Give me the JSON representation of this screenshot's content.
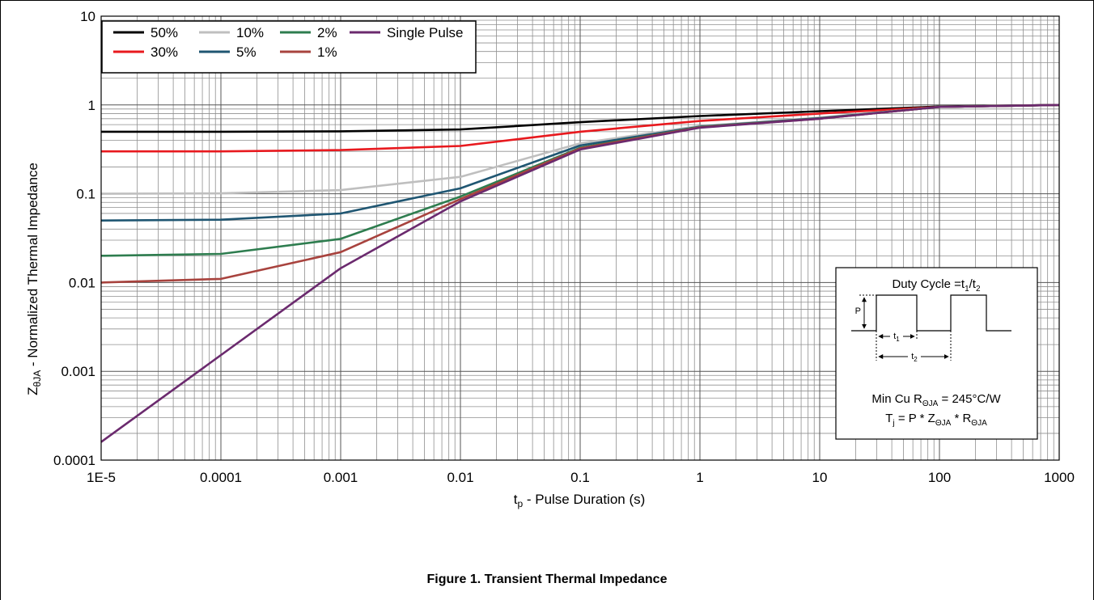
{
  "chart_data": {
    "type": "line",
    "title": "",
    "xlabel": {
      "main": "t",
      "sub": "p",
      "rest": " - Pulse Duration (s)"
    },
    "ylabel": {
      "main": "Z",
      "sub": "θJA",
      "rest": " - Normalized Thermal Impedance"
    },
    "x_scale": "log",
    "y_scale": "log",
    "xlim": [
      1e-05,
      1000
    ],
    "ylim": [
      0.0001,
      10
    ],
    "grid": true,
    "legend_position": "top-left",
    "x_ticks": [
      {
        "value": 1e-05,
        "label": "1E-5"
      },
      {
        "value": 0.0001,
        "label": "0.0001"
      },
      {
        "value": 0.001,
        "label": "0.001"
      },
      {
        "value": 0.01,
        "label": "0.01"
      },
      {
        "value": 0.1,
        "label": "0.1"
      },
      {
        "value": 1,
        "label": "1"
      },
      {
        "value": 10,
        "label": "10"
      },
      {
        "value": 100,
        "label": "100"
      },
      {
        "value": 1000,
        "label": "1000"
      }
    ],
    "y_ticks": [
      {
        "value": 0.0001,
        "label": "0.0001"
      },
      {
        "value": 0.001,
        "label": "0.001"
      },
      {
        "value": 0.01,
        "label": "0.01"
      },
      {
        "value": 0.1,
        "label": "0.1"
      },
      {
        "value": 1,
        "label": "1"
      },
      {
        "value": 10,
        "label": "10"
      }
    ],
    "series": [
      {
        "name": "50%",
        "color": "#000000",
        "x": [
          1e-05,
          0.0001,
          0.001,
          0.01,
          0.1,
          1,
          10,
          100,
          1000
        ],
        "y": [
          0.5,
          0.5,
          0.505,
          0.53,
          0.64,
          0.75,
          0.85,
          0.96,
          1.0
        ]
      },
      {
        "name": "30%",
        "color": "#e8191e",
        "x": [
          1e-05,
          0.0001,
          0.001,
          0.01,
          0.1,
          1,
          10,
          100,
          1000
        ],
        "y": [
          0.3,
          0.3,
          0.31,
          0.345,
          0.5,
          0.66,
          0.8,
          0.95,
          1.0
        ]
      },
      {
        "name": "10%",
        "color": "#bfbfbf",
        "x": [
          1e-05,
          0.0001,
          0.001,
          0.01,
          0.1,
          1,
          10,
          100,
          1000
        ],
        "y": [
          0.1,
          0.101,
          0.11,
          0.155,
          0.37,
          0.58,
          0.72,
          0.95,
          1.0
        ]
      },
      {
        "name": "5%",
        "color": "#1f5672",
        "x": [
          1e-05,
          0.0001,
          0.001,
          0.01,
          0.1,
          1,
          10,
          100,
          1000
        ],
        "y": [
          0.05,
          0.051,
          0.06,
          0.115,
          0.35,
          0.57,
          0.71,
          0.95,
          1.0
        ]
      },
      {
        "name": "2%",
        "color": "#2e7d4f",
        "x": [
          1e-05,
          0.0001,
          0.001,
          0.01,
          0.1,
          1,
          10,
          100,
          1000
        ],
        "y": [
          0.02,
          0.021,
          0.031,
          0.093,
          0.33,
          0.565,
          0.705,
          0.95,
          1.0
        ]
      },
      {
        "name": "1%",
        "color": "#a8433e",
        "x": [
          1e-05,
          0.0001,
          0.001,
          0.01,
          0.1,
          1,
          10,
          100,
          1000
        ],
        "y": [
          0.01,
          0.011,
          0.022,
          0.087,
          0.325,
          0.56,
          0.7,
          0.95,
          1.0
        ]
      },
      {
        "name": "Single Pulse",
        "color": "#6b2a6e",
        "x": [
          1e-05,
          0.001,
          0.01,
          0.1,
          1,
          10,
          100,
          1000
        ],
        "y": [
          0.00016,
          0.0145,
          0.082,
          0.315,
          0.555,
          0.7,
          0.95,
          1.0
        ]
      }
    ],
    "inset": {
      "title_main": "Duty Cycle =t",
      "title_sub1": "1",
      "title_slash": "/t",
      "title_sub2": "2",
      "p_label": "P",
      "t1_main": "t",
      "t1_sub": "1",
      "t2_main": "t",
      "t2_sub": "2",
      "rja_main": "Min Cu R",
      "rja_sub": "ΘJA",
      "rja_rest": " = 245°C/W",
      "tj_main": "T",
      "tj_sub": "j",
      "tj_mid1": " = P * Z",
      "tj_sub2": "ΘJA",
      "tj_mid2": " * R",
      "tj_sub3": "ΘJA"
    }
  },
  "caption": "Figure 1. Transient Thermal Impedance"
}
